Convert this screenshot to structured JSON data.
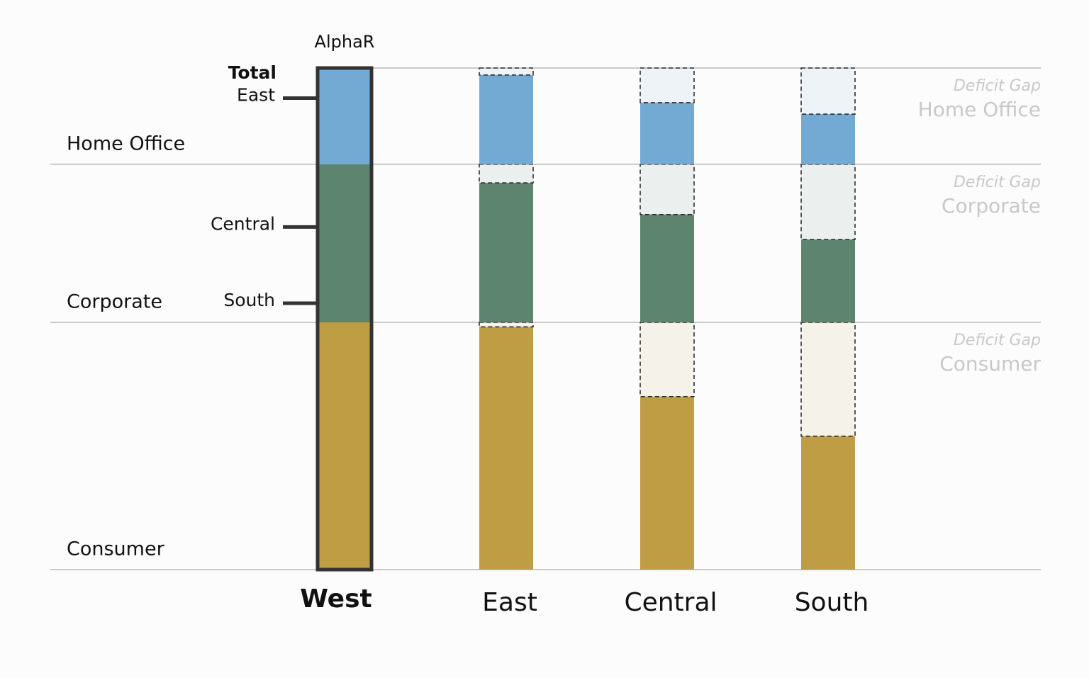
{
  "chart_data": {
    "type": "gap_stacked_bar",
    "title": "AlphaR",
    "reference_label": "Total",
    "gap_label": "Deficit Gap",
    "categories": [
      "West",
      "East",
      "Central",
      "South"
    ],
    "series": [
      {
        "name": "Consumer",
        "color": "#bf9d45",
        "values": [
          49.3,
          48.4,
          34.5,
          26.6
        ]
      },
      {
        "name": "Corporate",
        "color": "#5c846e",
        "values": [
          31.5,
          27.8,
          21.5,
          16.5
        ]
      },
      {
        "name": "Home Office",
        "color": "#72aad4",
        "values": [
          19.2,
          17.8,
          12.3,
          10.0
        ]
      }
    ],
    "ylim": [
      0,
      100
    ]
  }
}
